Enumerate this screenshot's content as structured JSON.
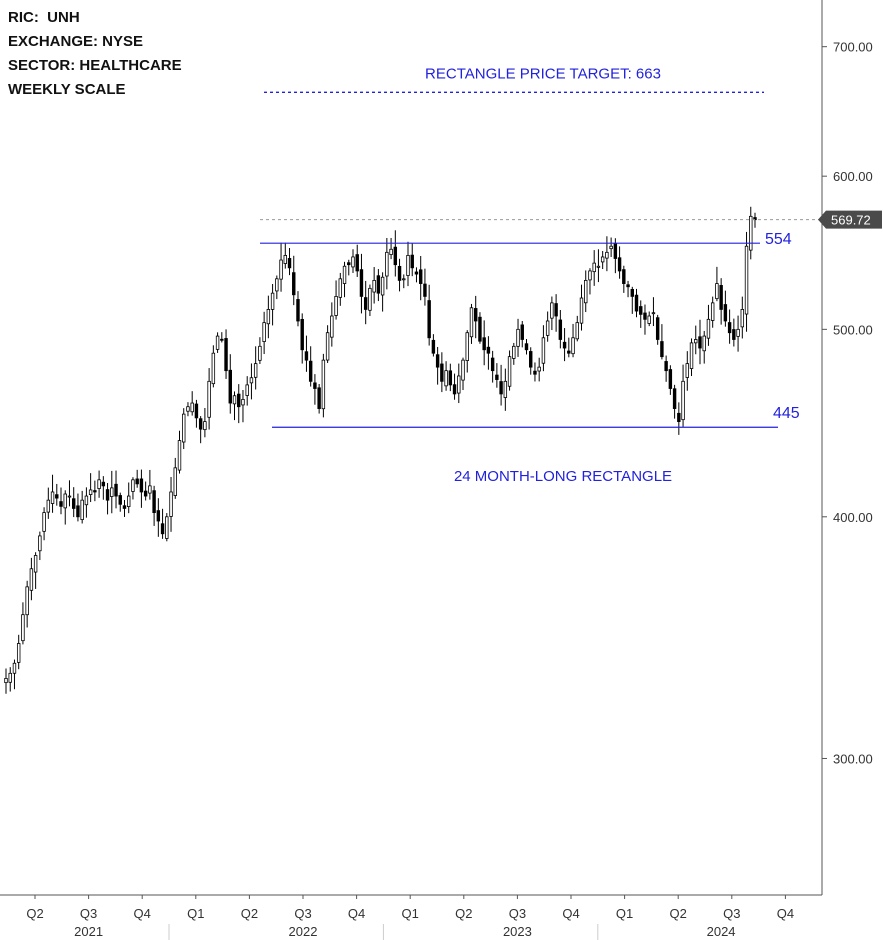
{
  "header": {
    "ric": "RIC:  UNH",
    "exchange": "EXCHANGE: NYSE",
    "sector": "SECTOR: HEALTHCARE",
    "scale": "WEEKLY SCALE"
  },
  "annotations": {
    "target_label": "RECTANGLE PRICE TARGET: 663",
    "upper_label": "554",
    "lower_label": "445",
    "rectangle_label": "24 MONTH-LONG RECTANGLE",
    "last_price": "569.72"
  },
  "colors": {
    "annotation": "#2222dd",
    "candle": "#000000",
    "axis": "#555555",
    "last_price_bg": "#4a4a4a"
  },
  "chart_data": {
    "type": "candlestick",
    "y_scale": "log",
    "ylim": [
      255,
      740
    ],
    "y_ticks": [
      {
        "value": 300,
        "label": "300.00"
      },
      {
        "value": 400,
        "label": "400.00"
      },
      {
        "value": 500,
        "label": "500.00"
      },
      {
        "value": 600,
        "label": "600.00"
      },
      {
        "value": 700,
        "label": "700.00"
      }
    ],
    "x_quarter_ticks": [
      "Q2",
      "Q3",
      "Q4",
      "Q1",
      "Q2",
      "Q3",
      "Q4",
      "Q1",
      "Q2",
      "Q3",
      "Q4",
      "Q1",
      "Q2",
      "Q3",
      "Q4"
    ],
    "x_year_labels": [
      "2021",
      "2022",
      "2023",
      "2024"
    ],
    "levels": {
      "rectangle_top": 554,
      "rectangle_bottom": 445,
      "price_target": 663,
      "last_close": 569.72
    },
    "weekly_close": [
      330,
      332,
      336,
      344,
      356,
      368,
      376,
      382,
      391,
      402,
      408,
      412,
      409,
      405,
      411,
      410,
      404,
      400,
      408,
      410,
      413,
      412,
      418,
      415,
      408,
      414,
      410,
      406,
      404,
      410,
      418,
      416,
      412,
      410,
      415,
      402,
      398,
      392,
      400,
      412,
      424,
      438,
      452,
      456,
      458,
      450,
      444,
      448,
      470,
      486,
      496,
      494,
      476,
      458,
      462,
      456,
      460,
      468,
      472,
      480,
      490,
      504,
      512,
      522,
      531,
      543,
      546,
      538,
      521,
      505,
      488,
      482,
      470,
      466,
      455,
      482,
      498,
      508,
      520,
      531,
      539,
      540,
      545,
      536,
      520,
      512,
      525,
      530,
      522,
      532,
      548,
      550,
      540,
      530,
      531,
      546,
      538,
      534,
      528,
      520,
      495,
      486,
      478,
      470,
      476,
      468,
      463,
      473,
      482,
      498,
      513,
      505,
      493,
      488,
      486,
      476,
      471,
      463,
      470,
      484,
      490,
      500,
      494,
      488,
      478,
      474,
      478,
      495,
      505,
      516,
      508,
      494,
      489,
      486,
      495,
      504,
      519,
      530,
      536,
      541,
      539,
      545,
      548,
      552,
      544,
      536,
      528,
      526,
      520,
      511,
      509,
      506,
      508,
      510,
      494,
      484,
      476,
      466,
      455,
      448,
      470,
      480,
      492,
      494,
      489,
      496,
      506,
      516,
      528,
      512,
      505,
      498,
      494,
      500,
      512,
      552,
      572,
      569.72
    ]
  }
}
